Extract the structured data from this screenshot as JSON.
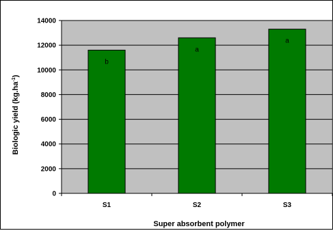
{
  "chart_data": {
    "type": "bar",
    "categories": [
      "S1",
      "S2",
      "S3"
    ],
    "values": [
      11600,
      12600,
      13300
    ],
    "bar_labels": [
      "b",
      "a",
      "a"
    ],
    "xlabel": "Super absorbent polymer",
    "ylabel": "Biologic yield (kg.ha",
    "ylabel_superscript": "-1",
    "ylabel_suffix": ")",
    "ylim": [
      0,
      14000
    ],
    "yticks": [
      0,
      2000,
      4000,
      6000,
      8000,
      10000,
      12000,
      14000
    ],
    "grid": true,
    "legend": "none",
    "colors": {
      "plot_background": "#c0c0c0",
      "bar_fill": "#007a00",
      "bar_stroke": "#000000",
      "grid": "#000000"
    }
  }
}
